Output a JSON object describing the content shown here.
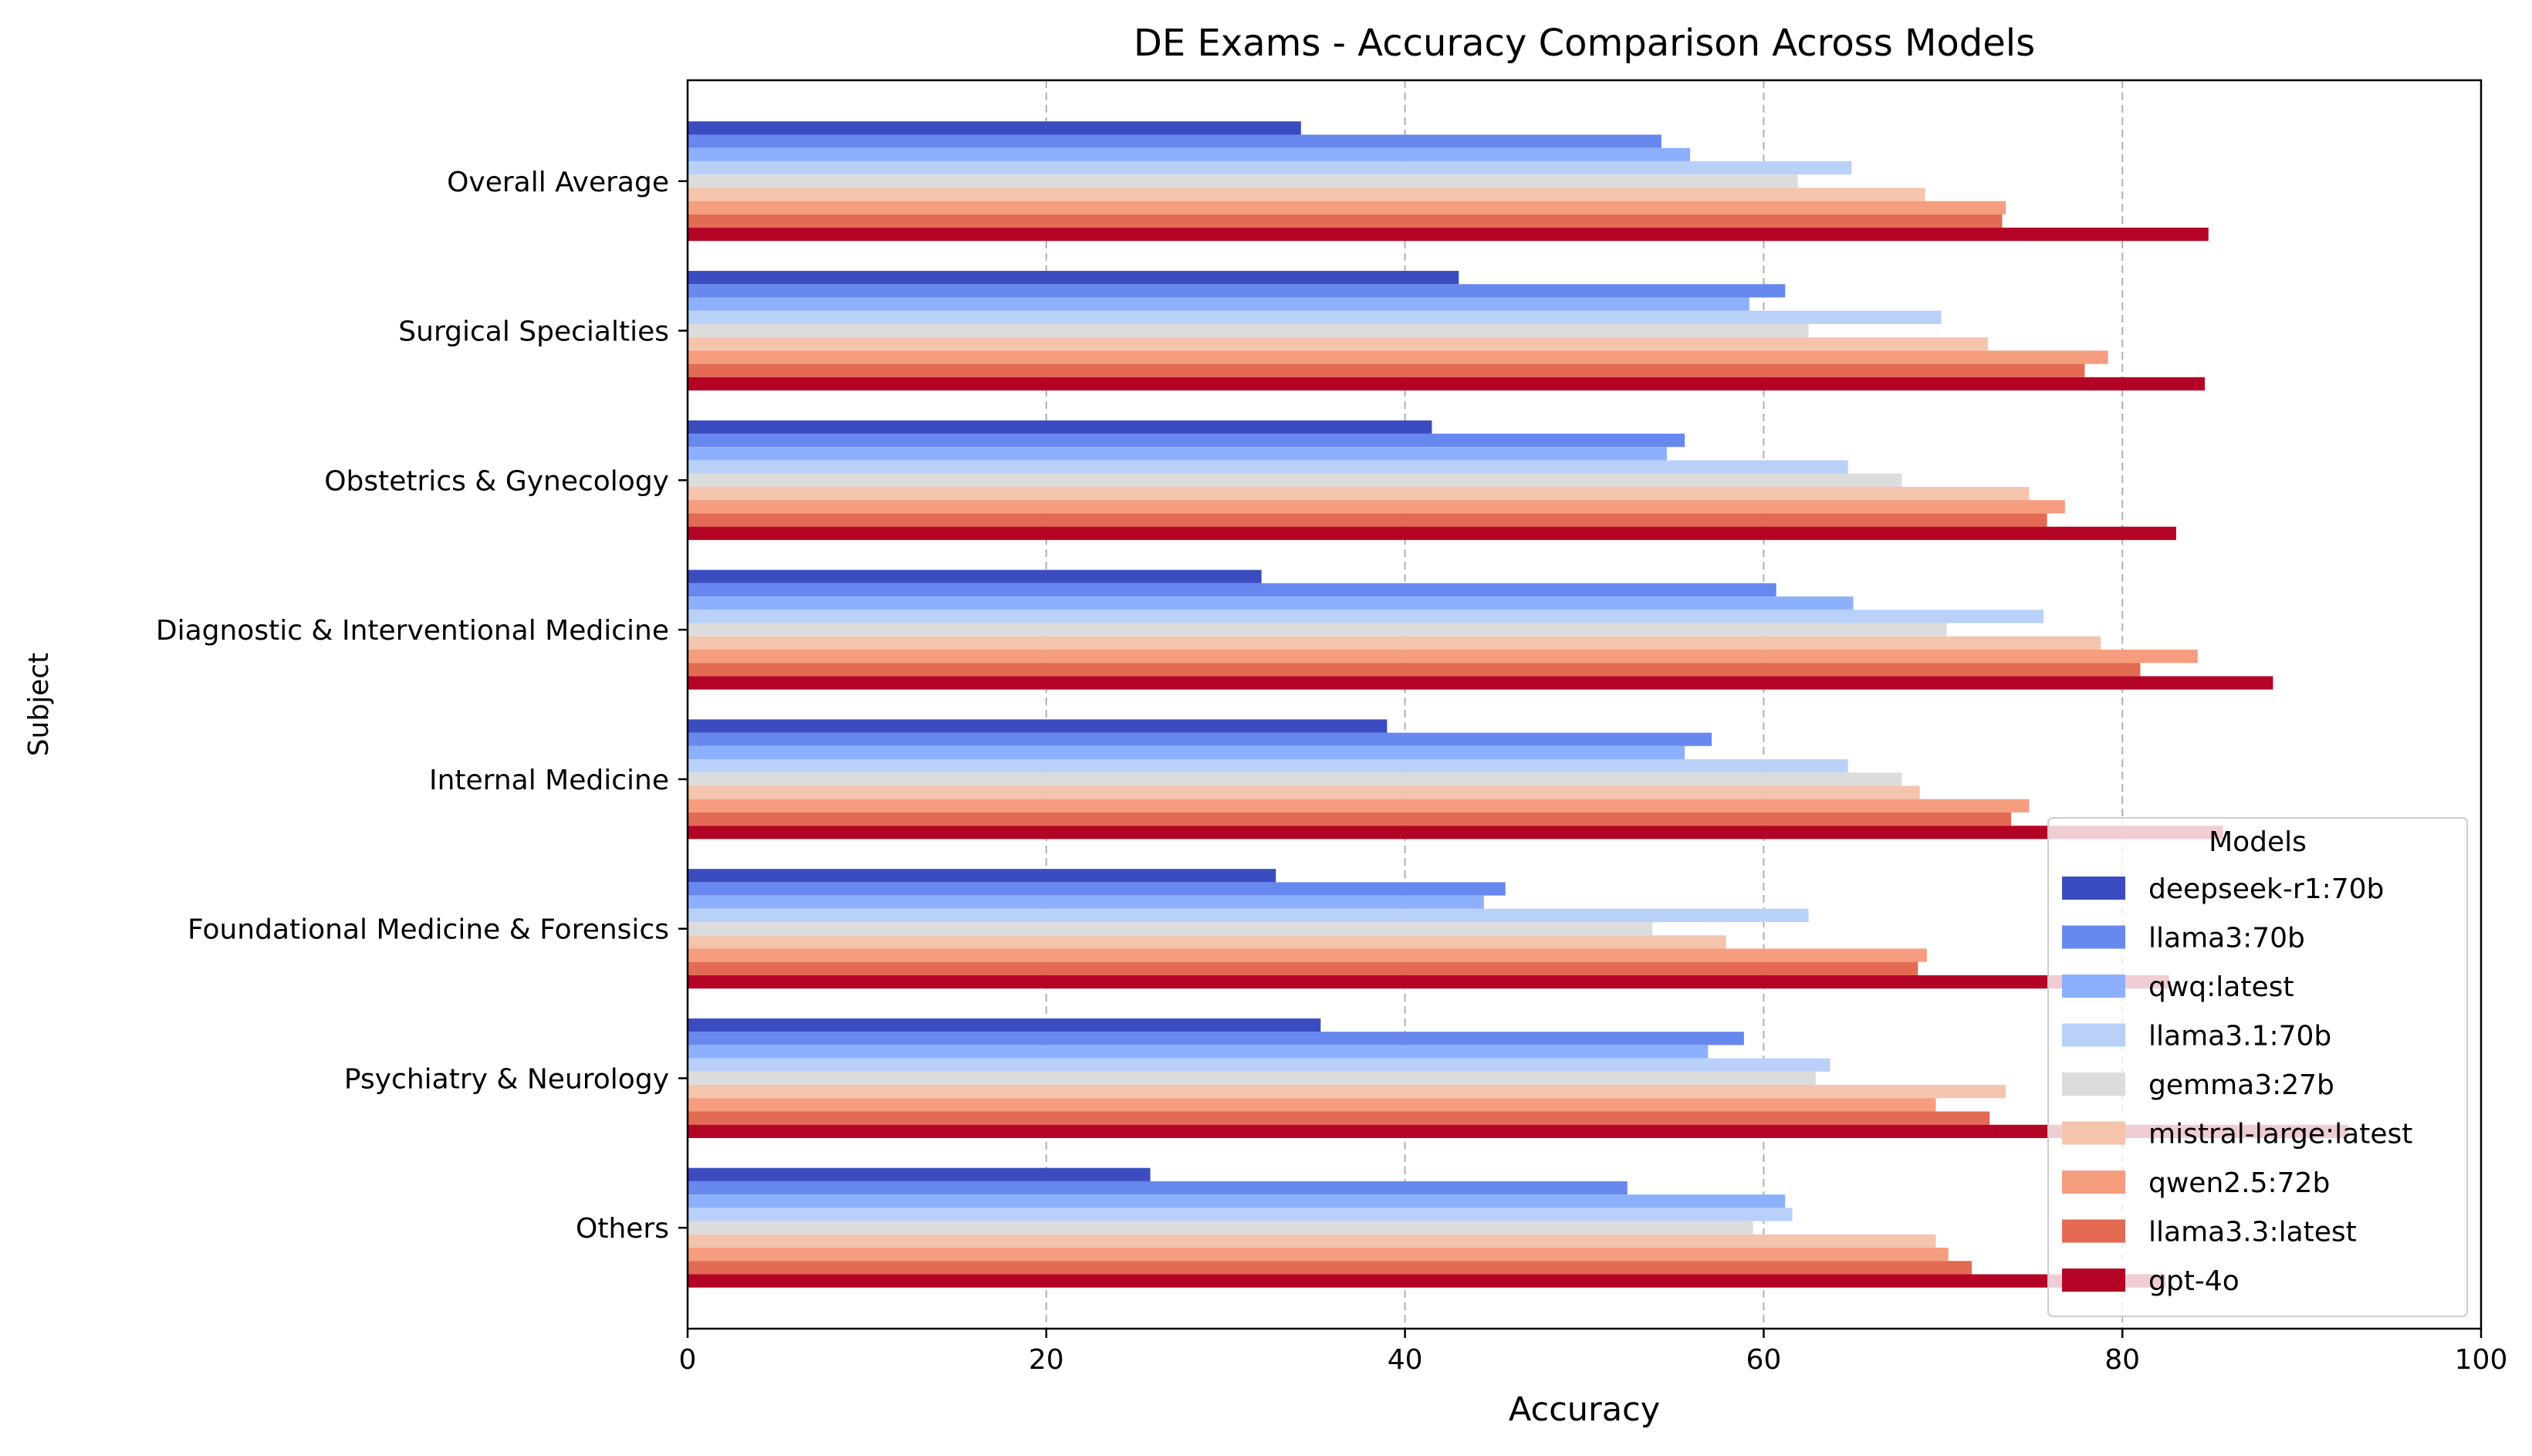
{
  "chart_data": {
    "type": "bar",
    "orientation": "horizontal",
    "title": "DE Exams - Accuracy Comparison Across Models",
    "xlabel": "Accuracy",
    "ylabel": "Subject",
    "xlim": [
      0,
      100
    ],
    "xticks": [
      "0",
      "20",
      "40",
      "60",
      "80",
      "100"
    ],
    "grid": "x, dashed",
    "legend": {
      "title": "Models",
      "placement": "lower-right"
    },
    "categories": [
      "Overall Average",
      "Surgical Specialties",
      "Obstetrics & Gynecology",
      "Diagnostic & Interventional Medicine",
      "Internal Medicine",
      "Foundational Medicine & Forensics",
      "Psychiatry & Neurology",
      "Others"
    ],
    "series": [
      {
        "name": "deepseek-r1:70b",
        "color": "#3b4cc0",
        "values": [
          34.2,
          43.0,
          41.5,
          32.0,
          39.0,
          32.8,
          35.3,
          25.8
        ]
      },
      {
        "name": "llama3:70b",
        "color": "#6788ee",
        "values": [
          54.3,
          61.2,
          55.6,
          60.7,
          57.1,
          45.6,
          58.9,
          52.4
        ]
      },
      {
        "name": "qwq:latest",
        "color": "#8db0fe",
        "values": [
          55.9,
          59.2,
          54.6,
          65.0,
          55.6,
          44.4,
          56.9,
          61.2
        ]
      },
      {
        "name": "llama3.1:70b",
        "color": "#b9d0f9",
        "values": [
          64.9,
          69.9,
          64.7,
          75.6,
          64.7,
          62.5,
          63.7,
          61.6
        ]
      },
      {
        "name": "gemma3:27b",
        "color": "#dddcdc",
        "values": [
          61.9,
          62.5,
          67.7,
          70.2,
          67.7,
          53.8,
          62.9,
          59.4
        ]
      },
      {
        "name": "mistral-large:latest",
        "color": "#f5c4ac",
        "values": [
          69.0,
          72.5,
          74.8,
          78.8,
          68.7,
          57.9,
          73.5,
          69.6
        ]
      },
      {
        "name": "qwen2.5:72b",
        "color": "#f59d7e",
        "values": [
          73.5,
          79.2,
          76.8,
          84.2,
          74.8,
          69.1,
          69.6,
          70.3
        ]
      },
      {
        "name": "llama3.3:latest",
        "color": "#e36a53",
        "values": [
          73.3,
          77.9,
          75.8,
          81.0,
          73.8,
          68.6,
          72.6,
          71.6
        ]
      },
      {
        "name": "gpt-4o",
        "color": "#b40426",
        "values": [
          84.8,
          84.6,
          83.0,
          88.4,
          85.6,
          82.6,
          92.6,
          82.4
        ]
      }
    ]
  }
}
